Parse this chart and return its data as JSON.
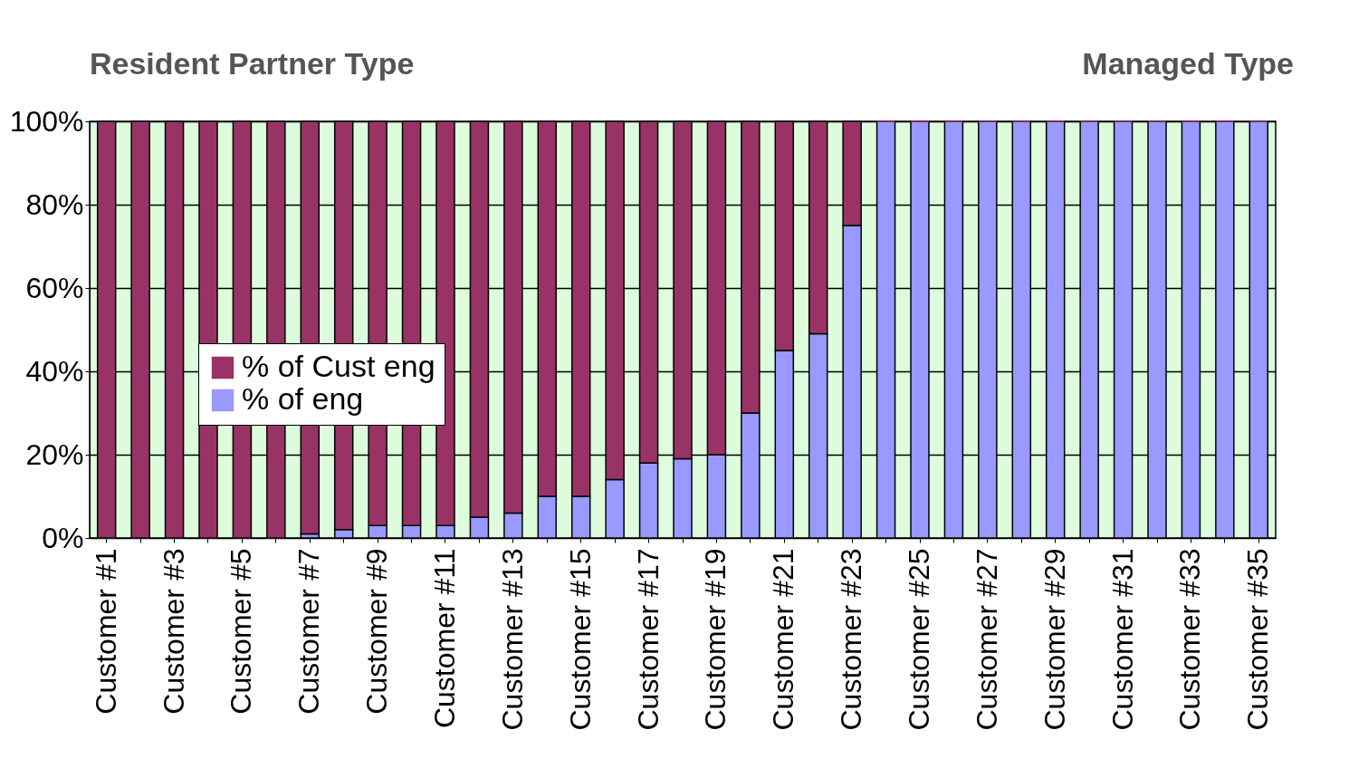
{
  "chart_data": {
    "type": "bar",
    "stacked": true,
    "categories": [
      "Customer #1",
      null,
      "Customer #3",
      null,
      "Customer #5",
      null,
      "Customer #7",
      null,
      "Customer #9",
      null,
      "Customer #11",
      null,
      "Customer #13",
      null,
      "Customer #15",
      null,
      "Customer #17",
      null,
      "Customer #19",
      null,
      "Customer #21",
      null,
      "Customer #23",
      null,
      "Customer #25",
      null,
      "Customer #27",
      null,
      "Customer #29",
      null,
      "Customer #31",
      null,
      "Customer #33",
      null,
      "Customer #35"
    ],
    "series": [
      {
        "name": "% of eng",
        "color": "#9999ff",
        "values": [
          0,
          0,
          0,
          0,
          0,
          0,
          1,
          2,
          3,
          3,
          3,
          5,
          6,
          10,
          10,
          14,
          18,
          19,
          20,
          30,
          45,
          49,
          75,
          100,
          100,
          100,
          100,
          100,
          100,
          100,
          100,
          100,
          100,
          100,
          100
        ]
      },
      {
        "name": "% of Cust eng",
        "color": "#993366",
        "values": [
          100,
          100,
          100,
          100,
          100,
          100,
          99,
          98,
          97,
          97,
          97,
          95,
          94,
          90,
          90,
          86,
          82,
          81,
          80,
          70,
          55,
          51,
          25,
          0,
          0,
          0,
          0,
          0,
          0,
          0,
          0,
          0,
          0,
          0,
          0
        ]
      }
    ],
    "ylim": [
      0,
      100
    ],
    "yticks": [
      {
        "value": 0,
        "label": "0%"
      },
      {
        "value": 20,
        "label": "20%"
      },
      {
        "value": 40,
        "label": "40%"
      },
      {
        "value": 60,
        "label": "60%"
      },
      {
        "value": 80,
        "label": "80%"
      },
      {
        "value": 100,
        "label": "100%"
      }
    ],
    "grid": "y",
    "legend": "left",
    "annotations": [
      "Resident Partner Type",
      "Managed Type"
    ]
  }
}
